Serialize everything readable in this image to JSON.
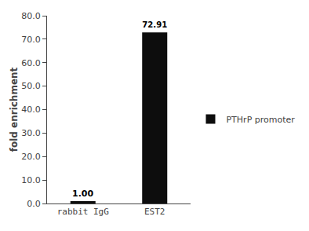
{
  "chart_data": {
    "type": "bar",
    "categories": [
      "rabbit IgG",
      "EST2"
    ],
    "series": [
      {
        "name": "PTHrP promoter",
        "color": "#0d0d0d",
        "values": [
          1.0,
          72.91
        ],
        "value_labels": [
          "1.00",
          "72.91"
        ]
      }
    ],
    "ylabel": "fold enrichment",
    "ylim": [
      0,
      80.0
    ],
    "yticks": [
      {
        "value": 0.0,
        "label": "0.0"
      },
      {
        "value": 10.0,
        "label": "10.0"
      },
      {
        "value": 20.0,
        "label": "20.0"
      },
      {
        "value": 30.0,
        "label": "30.0"
      },
      {
        "value": 40.0,
        "label": "40.0"
      },
      {
        "value": 50.0,
        "label": "50.0"
      },
      {
        "value": 60.0,
        "label": "60.0"
      },
      {
        "value": 70.0,
        "label": "70.0"
      },
      {
        "value": 80.0,
        "label": "80.0"
      }
    ],
    "data_labels": true,
    "grid": false,
    "legend": "right"
  }
}
